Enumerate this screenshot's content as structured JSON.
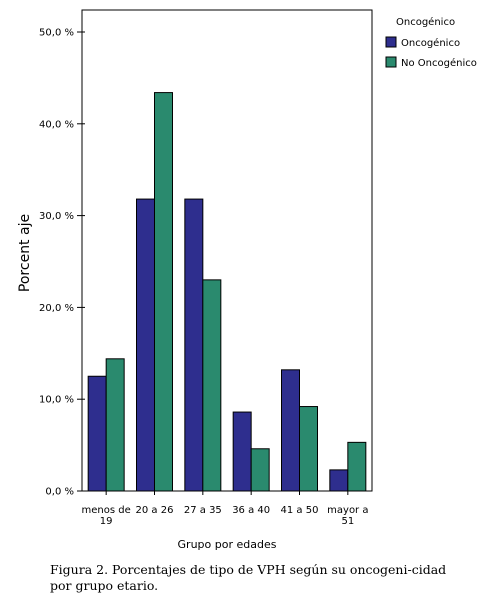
{
  "chart_data": {
    "type": "bar",
    "title": "",
    "xlabel": "Grupo por edades",
    "ylabel": "Porcent aje",
    "categories": [
      [
        "menos de",
        "19"
      ],
      [
        "20 a 26"
      ],
      [
        "27 a 35"
      ],
      [
        "36 a 40"
      ],
      [
        "41 a 50"
      ],
      [
        "mayor a",
        "51"
      ]
    ],
    "series": [
      {
        "name": "Oncogénico",
        "color": "#2e2e8e",
        "values": [
          12.5,
          31.8,
          31.8,
          8.6,
          13.2,
          2.3
        ]
      },
      {
        "name": "No Oncogénico",
        "color": "#2a8a6e",
        "values": [
          14.4,
          43.4,
          23.0,
          4.6,
          9.2,
          5.3
        ]
      }
    ],
    "ylim": [
      0,
      50
    ],
    "yticks": [
      "0,0 %",
      "10,0 %",
      "20,0 %",
      "30,0 %",
      "40,0 %",
      "50,0 %"
    ],
    "legend": {
      "title": "Oncogénico",
      "position": "top-right"
    },
    "grid": false
  },
  "caption": "Figura 2.  Porcentajes de tipo de VPH según su oncogeni-cidad por grupo etario."
}
